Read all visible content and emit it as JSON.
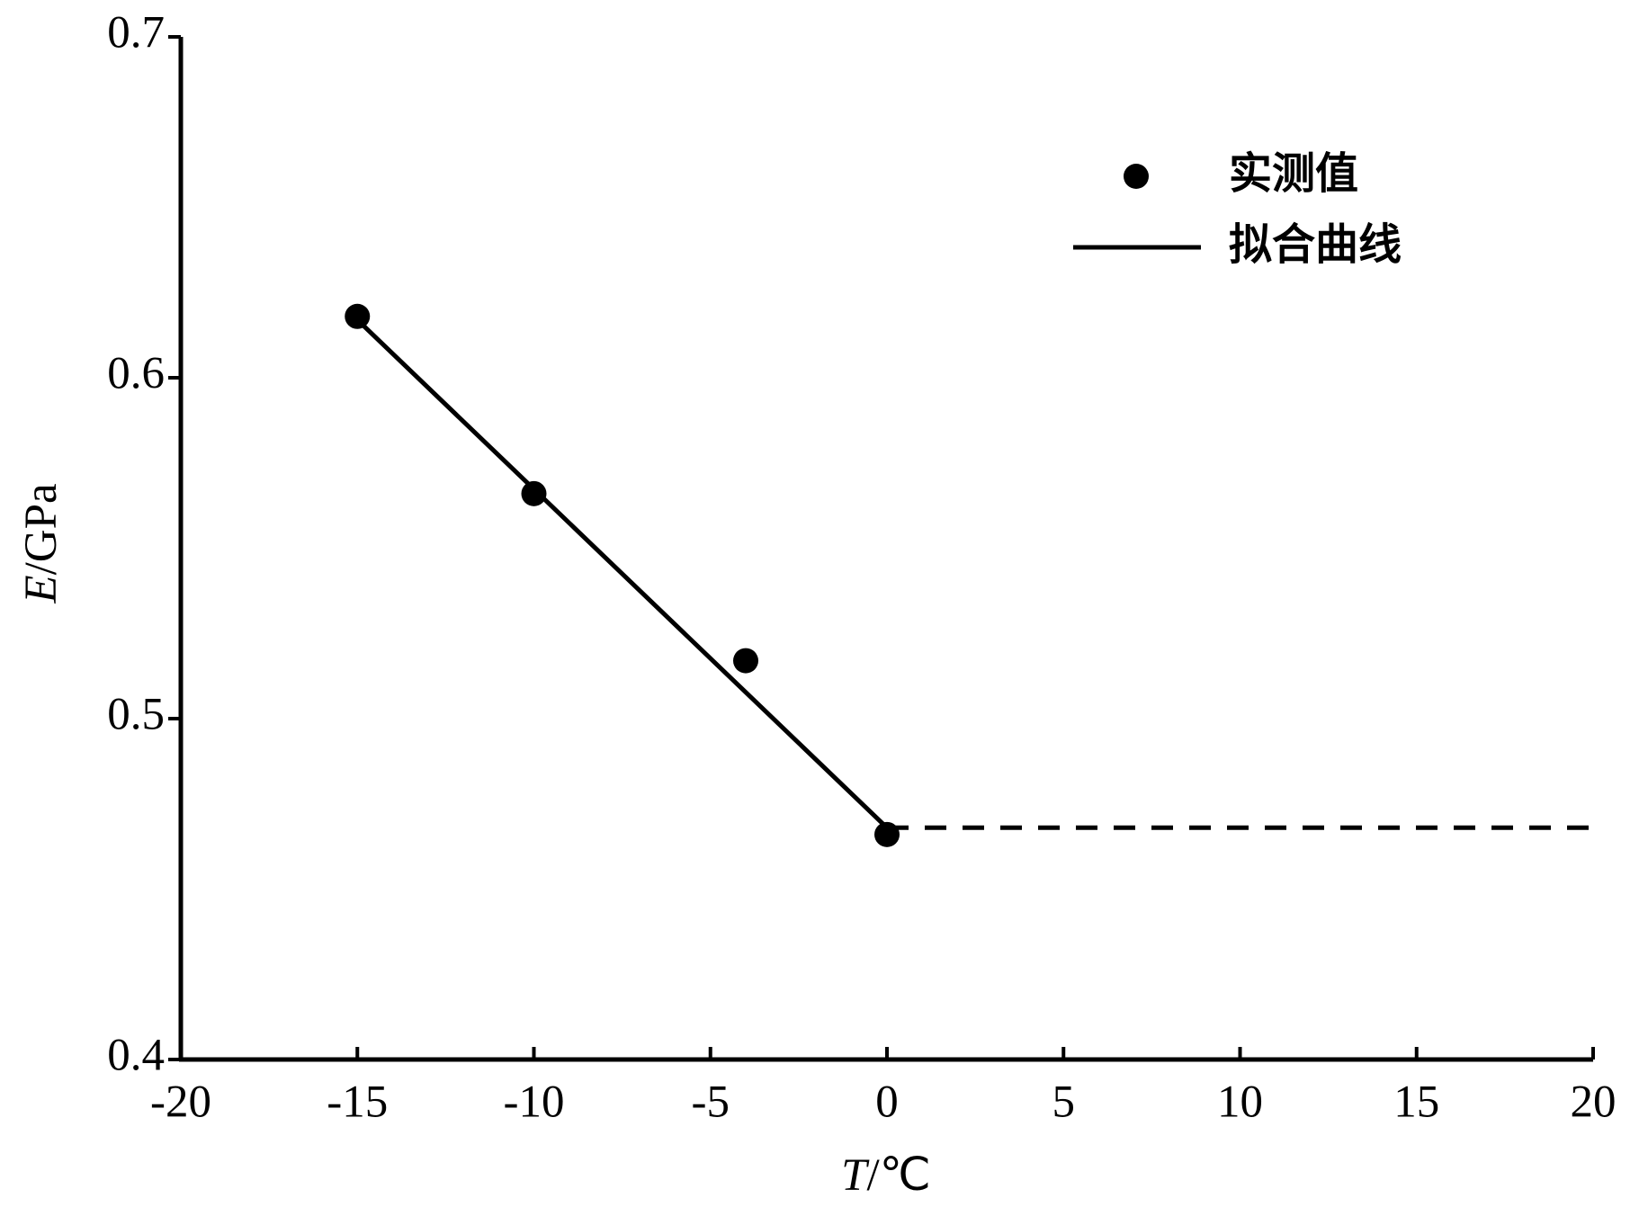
{
  "chart_data": {
    "type": "scatter-line",
    "xlabel": {
      "var": "T",
      "unit": "/℃"
    },
    "ylabel": {
      "var": "E",
      "unit": "/GPa"
    },
    "xlim": [
      -20,
      20
    ],
    "xticks": [
      -20,
      -15,
      -10,
      -5,
      0,
      5,
      10,
      15,
      20
    ],
    "ylim": [
      0.4,
      0.7
    ],
    "yticks": [
      0.4,
      0.5,
      0.6,
      0.7
    ],
    "legend": "upper right",
    "series": [
      {
        "name": "实测值",
        "kind": "scatter",
        "color": "#000000",
        "x": [
          -15,
          -10,
          -4,
          0
        ],
        "values": [
          0.618,
          0.566,
          0.517,
          0.466
        ]
      },
      {
        "name": "拟合曲线",
        "kind": "line",
        "color": "#000000",
        "x": [
          -15,
          0
        ],
        "values": [
          0.617,
          0.468
        ]
      },
      {
        "kind": "line",
        "dashed": true,
        "color": "#000000",
        "x": [
          0,
          20
        ],
        "values": [
          0.468,
          0.468
        ]
      }
    ]
  }
}
